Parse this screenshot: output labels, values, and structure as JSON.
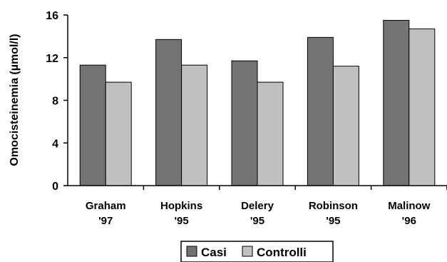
{
  "chart_data": {
    "type": "bar",
    "categories": [
      "Graham '97",
      "Hopkins '95",
      "Delery '95",
      "Robinson '95",
      "Malinow '96"
    ],
    "category_lines": [
      [
        "Graham",
        "'97"
      ],
      [
        "Hopkins",
        "'95"
      ],
      [
        "Delery",
        "'95"
      ],
      [
        "Robinson",
        "'95"
      ],
      [
        "Malinow",
        "'96"
      ]
    ],
    "series": [
      {
        "name": "Casi",
        "color": "#737373",
        "values": [
          11.3,
          13.7,
          11.7,
          13.9,
          15.5
        ]
      },
      {
        "name": "Controlli",
        "color": "#c0c0c0",
        "values": [
          9.7,
          11.3,
          9.7,
          11.2,
          14.7
        ]
      }
    ],
    "title": "",
    "xlabel": "",
    "ylabel": "Omocisteinemia (µmol/l)",
    "ylim": [
      0,
      16
    ],
    "yticks": [
      0,
      4,
      8,
      12,
      16
    ],
    "grid": false,
    "legend_position": "bottom-center"
  }
}
